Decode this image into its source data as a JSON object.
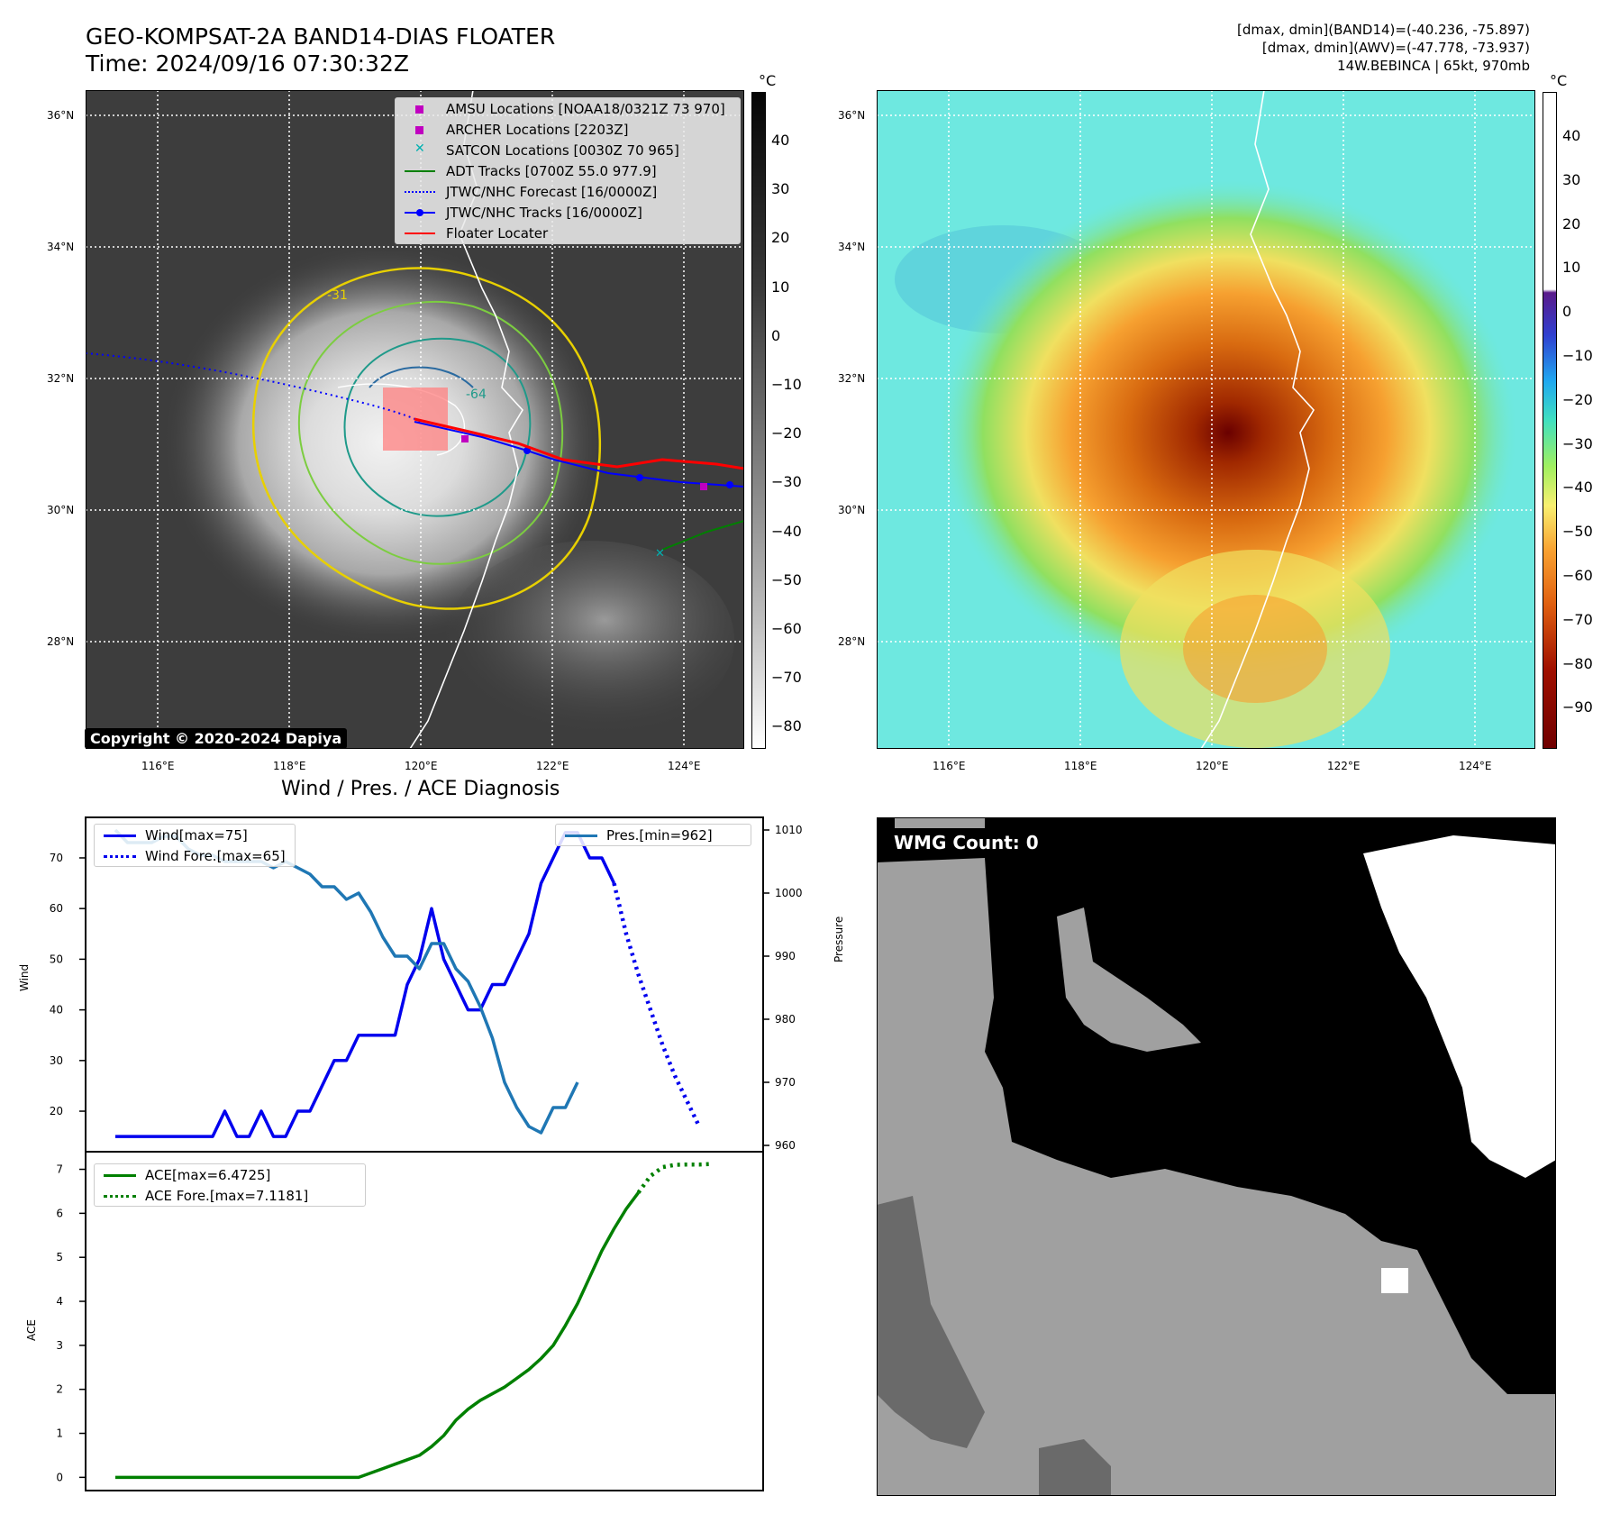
{
  "header": {
    "title_line1": "GEO-KOMPSAT-2A BAND14-DIAS FLOATER",
    "title_line2": "Time: 2024/09/16 07:30:32Z",
    "info_line1": "[dmax, dmin](BAND14)=(-40.236, -75.897)",
    "info_line2": "[dmax, dmin](AWV)=(-47.778, -73.937)",
    "info_line3": "14W.BEBINCA | 65kt, 970mb"
  },
  "map_axes": {
    "lon_labels": [
      "116°E",
      "118°E",
      "120°E",
      "122°E",
      "124°E"
    ],
    "lat_labels": [
      "36°N",
      "34°N",
      "32°N",
      "30°N",
      "28°N"
    ],
    "contour_labels": [
      "-31",
      "-64"
    ]
  },
  "legend_map": [
    {
      "label": "AMSU Locations [NOAA18/0321Z 73 970]"
    },
    {
      "label": "ARCHER Locations [2203Z]"
    },
    {
      "label": "SATCON Locations [0030Z 70 965]"
    },
    {
      "label": "ADT Tracks [0700Z 55.0 977.9]"
    },
    {
      "label": "JTWC/NHC Forecast [16/0000Z]"
    },
    {
      "label": "JTWC/NHC Tracks [16/0000Z]"
    },
    {
      "label": "Floater Locater"
    }
  ],
  "copyright": "Copyright © 2020-2024 Dapiya",
  "colorbar_ir": {
    "unit": "°C",
    "ticks": [
      "40",
      "30",
      "20",
      "10",
      "0",
      "−10",
      "−20",
      "−30",
      "−40",
      "−50",
      "−60",
      "−70",
      "−80"
    ]
  },
  "colorbar_awv": {
    "unit": "°C",
    "ticks": [
      "40",
      "30",
      "20",
      "10",
      "0",
      "−10",
      "−20",
      "−30",
      "−40",
      "−50",
      "−60",
      "−70",
      "−80",
      "−90"
    ]
  },
  "diag": {
    "title": "Wind / Pres. / ACE Diagnosis",
    "wind_ylabel": "Wind",
    "pres_ylabel": "Pressure",
    "ace_ylabel": "ACE",
    "wind_legend": "Wind[max=75]",
    "wind_fore_legend": "Wind Fore.[max=65]",
    "pres_legend": "Pres.[min=962]",
    "ace_legend": "ACE[max=6.4725]",
    "ace_fore_legend": "ACE Fore.[max=7.1181]"
  },
  "wmg": {
    "label": "WMG Count: 0"
  },
  "colors": {
    "wind": "#0000ee",
    "pressure": "#1f77b4",
    "ace": "#008000",
    "amsu": "#c000c0",
    "satcon": "#00b0b0",
    "adt": "#008000",
    "jtwc": "#0000ff",
    "floater": "#ff0000"
  },
  "chart_data": [
    {
      "type": "line",
      "title": "Wind / Pres. / ACE Diagnosis",
      "ylabel": "Wind",
      "ylim": [
        12,
        78
      ],
      "series": [
        {
          "name": "Wind[max=75]",
          "values": [
            15,
            15,
            15,
            15,
            15,
            15,
            15,
            15,
            15,
            20,
            15,
            15,
            20,
            15,
            15,
            20,
            20,
            25,
            30,
            30,
            35,
            35,
            35,
            35,
            45,
            50,
            60,
            50,
            45,
            40,
            40,
            45,
            45,
            50,
            55,
            65,
            70,
            75,
            75,
            70,
            70,
            65
          ]
        },
        {
          "name": "Wind Fore.[max=65]",
          "values": [
            65,
            55,
            47,
            40,
            33,
            27,
            22,
            17
          ],
          "offset": 41
        }
      ]
    },
    {
      "type": "line",
      "ylabel": "Pressure",
      "ylim": [
        959,
        1012
      ],
      "series": [
        {
          "name": "Pres.[min=962]",
          "values": [
            1010,
            1008,
            1008,
            1008,
            1009,
            1009,
            1007,
            1006,
            1006,
            1005,
            1005,
            1005,
            1005,
            1004,
            1005,
            1004,
            1003,
            1001,
            1001,
            999,
            1000,
            997,
            993,
            990,
            990,
            988,
            992,
            992,
            988,
            986,
            982,
            977,
            970,
            966,
            963,
            962,
            966,
            966,
            970
          ]
        }
      ]
    },
    {
      "type": "line",
      "ylabel": "ACE",
      "ylim": [
        -0.3,
        7.4
      ],
      "series": [
        {
          "name": "ACE[max=6.4725]",
          "values": [
            0,
            0,
            0,
            0,
            0,
            0,
            0,
            0,
            0,
            0,
            0,
            0,
            0,
            0,
            0,
            0,
            0,
            0,
            0,
            0,
            0,
            0.1,
            0.2,
            0.3,
            0.4,
            0.5,
            0.7,
            0.95,
            1.3,
            1.55,
            1.75,
            1.9,
            2.05,
            2.25,
            2.45,
            2.7,
            3.0,
            3.45,
            3.95,
            4.55,
            5.15,
            5.65,
            6.1,
            6.47
          ]
        },
        {
          "name": "ACE Fore.[max=7.1181]",
          "values": [
            6.47,
            6.85,
            7.05,
            7.1,
            7.11,
            7.11,
            7.12
          ],
          "offset": 43
        }
      ]
    }
  ]
}
